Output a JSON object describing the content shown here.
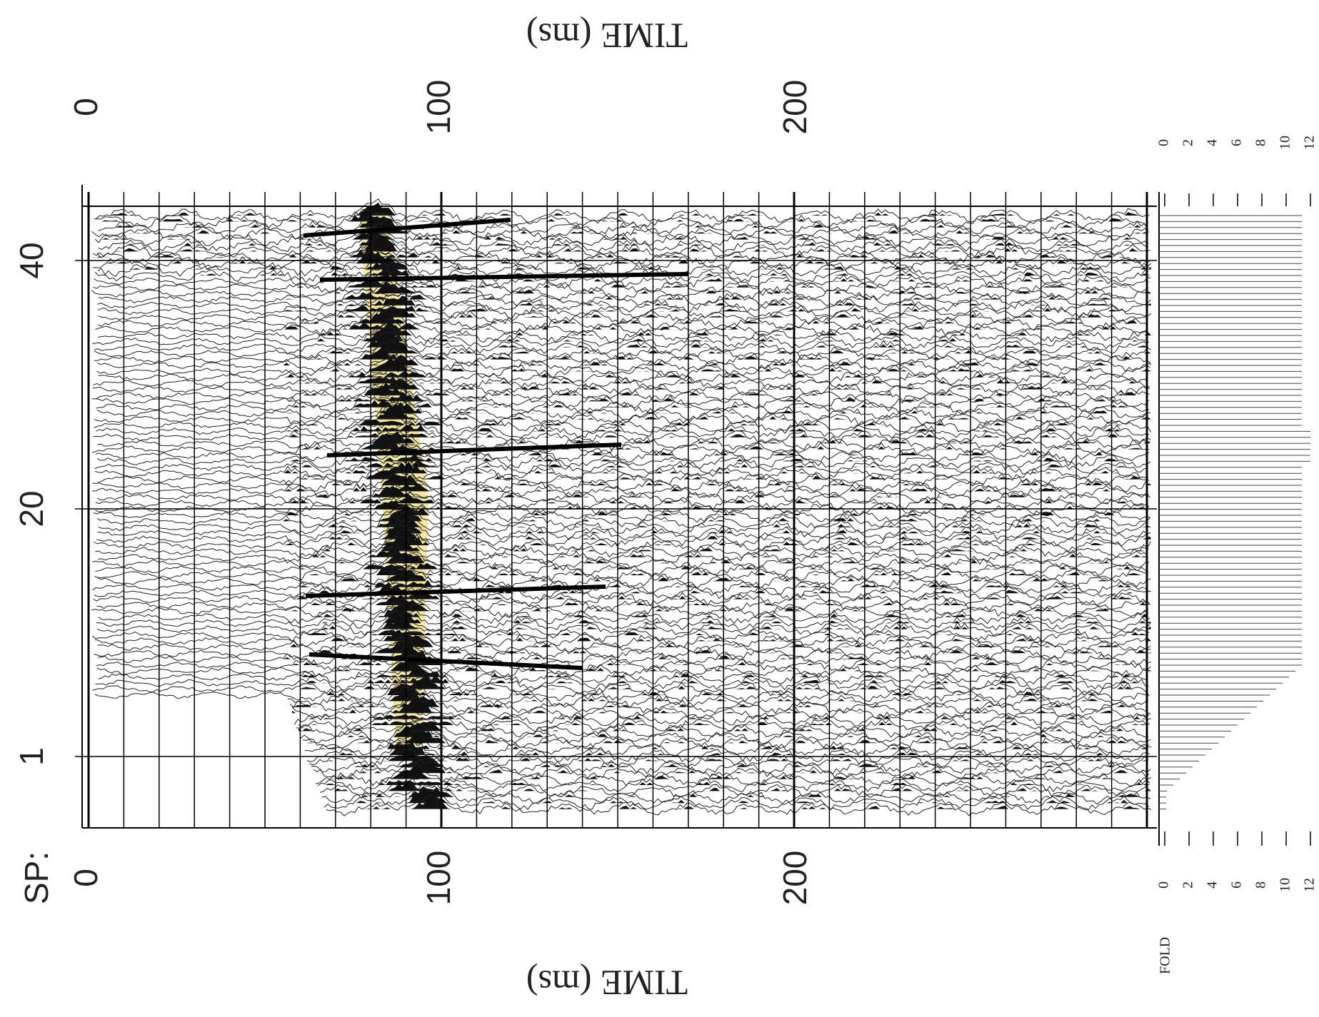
{
  "sp_label": "SP:",
  "time_axis": {
    "title": "TIME (ms)",
    "ticks": [
      "0",
      "100",
      "200"
    ]
  },
  "sp_ticks": [
    "40",
    "20",
    "1"
  ],
  "fold": {
    "title": "FOLD",
    "ticks": [
      "0",
      "2",
      "4",
      "6",
      "8",
      "10",
      "12"
    ]
  }
}
